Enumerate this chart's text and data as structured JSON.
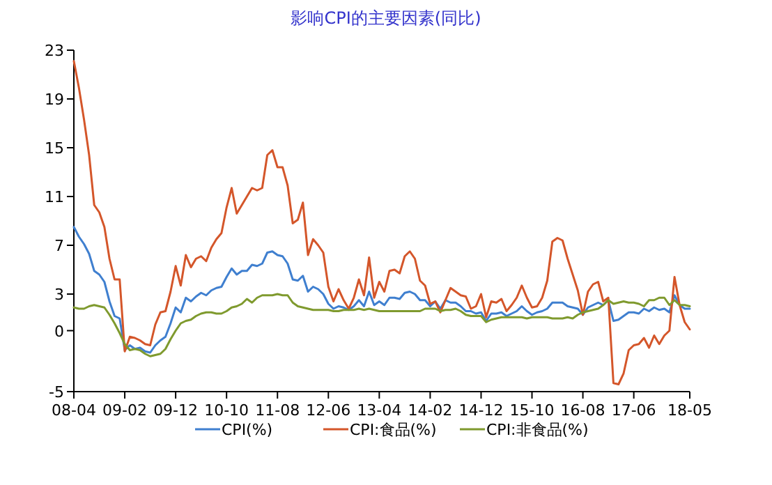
{
  "chart_data": {
    "type": "line",
    "title": "影响CPI的主要因素(同比)",
    "x": [
      "2008-04",
      "2008-05",
      "2008-06",
      "2008-07",
      "2008-08",
      "2008-09",
      "2008-10",
      "2008-11",
      "2008-12",
      "2009-01",
      "2009-02",
      "2009-03",
      "2009-04",
      "2009-05",
      "2009-06",
      "2009-07",
      "2009-08",
      "2009-09",
      "2009-10",
      "2009-11",
      "2009-12",
      "2010-01",
      "2010-02",
      "2010-03",
      "2010-04",
      "2010-05",
      "2010-06",
      "2010-07",
      "2010-08",
      "2010-09",
      "2010-10",
      "2010-11",
      "2010-12",
      "2011-01",
      "2011-02",
      "2011-03",
      "2011-04",
      "2011-05",
      "2011-06",
      "2011-07",
      "2011-08",
      "2011-09",
      "2011-10",
      "2011-11",
      "2011-12",
      "2012-01",
      "2012-02",
      "2012-03",
      "2012-04",
      "2012-05",
      "2012-06",
      "2012-07",
      "2012-08",
      "2012-09",
      "2012-10",
      "2012-11",
      "2012-12",
      "2013-01",
      "2013-02",
      "2013-03",
      "2013-04",
      "2013-05",
      "2013-06",
      "2013-07",
      "2013-08",
      "2013-09",
      "2013-10",
      "2013-11",
      "2013-12",
      "2014-01",
      "2014-02",
      "2014-03",
      "2014-04",
      "2014-05",
      "2014-06",
      "2014-07",
      "2014-08",
      "2014-09",
      "2014-10",
      "2014-11",
      "2014-12",
      "2015-01",
      "2015-02",
      "2015-03",
      "2015-04",
      "2015-05",
      "2015-06",
      "2015-07",
      "2015-08",
      "2015-09",
      "2015-10",
      "2015-11",
      "2015-12",
      "2016-01",
      "2016-02",
      "2016-03",
      "2016-04",
      "2016-05",
      "2016-06",
      "2016-07",
      "2016-08",
      "2016-09",
      "2016-10",
      "2016-11",
      "2016-12",
      "2017-01",
      "2017-02",
      "2017-03",
      "2017-04",
      "2017-05",
      "2017-06",
      "2017-07",
      "2017-08",
      "2017-09",
      "2017-10",
      "2017-11",
      "2017-12",
      "2018-01",
      "2018-02",
      "2018-03",
      "2018-04",
      "2018-05"
    ],
    "series": [
      {
        "name": "CPI(%)",
        "color": "#3f7fcf",
        "values": [
          8.5,
          7.7,
          7.1,
          6.3,
          4.9,
          4.6,
          4.0,
          2.4,
          1.2,
          1.0,
          -1.6,
          -1.2,
          -1.5,
          -1.4,
          -1.7,
          -1.8,
          -1.2,
          -0.8,
          -0.5,
          0.6,
          1.9,
          1.5,
          2.7,
          2.4,
          2.8,
          3.1,
          2.9,
          3.3,
          3.5,
          3.6,
          4.4,
          5.1,
          4.6,
          4.9,
          4.9,
          5.4,
          5.3,
          5.5,
          6.4,
          6.5,
          6.2,
          6.1,
          5.5,
          4.2,
          4.1,
          4.5,
          3.2,
          3.6,
          3.4,
          3.0,
          2.2,
          1.8,
          2.0,
          1.9,
          1.7,
          2.0,
          2.5,
          2.0,
          3.2,
          2.1,
          2.4,
          2.1,
          2.7,
          2.7,
          2.6,
          3.1,
          3.2,
          3.0,
          2.5,
          2.5,
          2.0,
          2.4,
          1.8,
          2.5,
          2.3,
          2.3,
          2.0,
          1.6,
          1.6,
          1.4,
          1.5,
          0.8,
          1.4,
          1.4,
          1.5,
          1.2,
          1.4,
          1.6,
          2.0,
          1.6,
          1.3,
          1.5,
          1.6,
          1.8,
          2.3,
          2.3,
          2.3,
          2.0,
          1.9,
          1.8,
          1.3,
          1.9,
          2.1,
          2.3,
          2.1,
          2.5,
          0.8,
          0.9,
          1.2,
          1.5,
          1.5,
          1.4,
          1.8,
          1.6,
          1.9,
          1.7,
          1.8,
          1.5,
          2.9,
          2.1,
          1.8,
          1.8
        ]
      },
      {
        "name": "CPI:食品(%)",
        "color": "#d4562a",
        "values": [
          22.1,
          19.9,
          17.3,
          14.4,
          10.3,
          9.7,
          8.5,
          5.9,
          4.2,
          4.2,
          -1.7,
          -0.5,
          -0.6,
          -0.8,
          -1.1,
          -1.2,
          0.5,
          1.5,
          1.6,
          3.2,
          5.3,
          3.7,
          6.2,
          5.2,
          5.9,
          6.1,
          5.7,
          6.8,
          7.5,
          8.0,
          10.1,
          11.7,
          9.6,
          10.3,
          11.0,
          11.7,
          11.5,
          11.7,
          14.4,
          14.8,
          13.4,
          13.4,
          11.9,
          8.8,
          9.1,
          10.5,
          6.2,
          7.5,
          7.0,
          6.4,
          3.6,
          2.4,
          3.4,
          2.5,
          1.8,
          2.7,
          4.2,
          2.9,
          6.0,
          2.7,
          4.0,
          3.2,
          4.9,
          5.0,
          4.7,
          6.1,
          6.5,
          5.9,
          4.1,
          3.7,
          2.2,
          2.4,
          1.5,
          2.5,
          3.5,
          3.2,
          2.9,
          2.8,
          1.8,
          2.0,
          3.0,
          1.1,
          2.4,
          2.3,
          2.6,
          1.6,
          2.1,
          2.7,
          3.7,
          2.7,
          1.9,
          2.0,
          2.7,
          4.1,
          7.3,
          7.6,
          7.4,
          5.9,
          4.6,
          3.3,
          1.3,
          3.2,
          3.8,
          4.0,
          2.4,
          2.7,
          -4.3,
          -4.4,
          -3.5,
          -1.6,
          -1.2,
          -1.1,
          -0.6,
          -1.4,
          -0.4,
          -1.1,
          -0.4,
          0.0,
          4.4,
          2.1,
          0.7,
          0.1
        ]
      },
      {
        "name": "CPI:非食品(%)",
        "color": "#7f9a2e",
        "values": [
          1.9,
          1.8,
          1.8,
          2.0,
          2.1,
          2.0,
          1.9,
          1.3,
          0.6,
          -0.2,
          -1.1,
          -1.6,
          -1.5,
          -1.6,
          -1.9,
          -2.1,
          -2.0,
          -1.9,
          -1.5,
          -0.7,
          0.0,
          0.6,
          0.8,
          0.9,
          1.2,
          1.4,
          1.5,
          1.5,
          1.4,
          1.4,
          1.6,
          1.9,
          2.0,
          2.2,
          2.6,
          2.3,
          2.7,
          2.9,
          2.9,
          2.9,
          3.0,
          2.9,
          2.9,
          2.3,
          2.0,
          1.9,
          1.8,
          1.7,
          1.7,
          1.7,
          1.7,
          1.6,
          1.6,
          1.7,
          1.7,
          1.7,
          1.8,
          1.7,
          1.8,
          1.7,
          1.6,
          1.6,
          1.6,
          1.6,
          1.6,
          1.6,
          1.6,
          1.6,
          1.6,
          1.8,
          1.8,
          1.8,
          1.6,
          1.7,
          1.7,
          1.8,
          1.6,
          1.3,
          1.2,
          1.2,
          1.2,
          0.7,
          0.9,
          1.0,
          1.1,
          1.1,
          1.1,
          1.1,
          1.1,
          1.0,
          1.1,
          1.1,
          1.1,
          1.1,
          1.0,
          1.0,
          1.0,
          1.1,
          1.0,
          1.3,
          1.5,
          1.6,
          1.7,
          1.8,
          2.1,
          2.5,
          2.2,
          2.3,
          2.4,
          2.3,
          2.3,
          2.2,
          2.0,
          2.5,
          2.5,
          2.7,
          2.7,
          2.1,
          2.5,
          2.1,
          2.1,
          2.0
        ]
      }
    ],
    "xlim": [
      "2008-04",
      "2018-05"
    ],
    "xticks": [
      {
        "value": "2008-04",
        "label": "08-04"
      },
      {
        "value": "2009-02",
        "label": "09-02"
      },
      {
        "value": "2009-12",
        "label": "09-12"
      },
      {
        "value": "2010-10",
        "label": "10-10"
      },
      {
        "value": "2011-08",
        "label": "11-08"
      },
      {
        "value": "2012-06",
        "label": "12-06"
      },
      {
        "value": "2013-04",
        "label": "13-04"
      },
      {
        "value": "2014-02",
        "label": "14-02"
      },
      {
        "value": "2014-12",
        "label": "14-12"
      },
      {
        "value": "2015-10",
        "label": "15-10"
      },
      {
        "value": "2016-08",
        "label": "16-08"
      },
      {
        "value": "2017-06",
        "label": "17-06"
      },
      {
        "value": "2018-05",
        "label": "18-05"
      }
    ],
    "ylim": [
      -5,
      23
    ],
    "yticks": [
      23,
      19,
      15,
      11,
      7,
      3,
      0,
      -5
    ],
    "grid": false,
    "legend": "bottom",
    "marker": "none",
    "line_style": "solid"
  }
}
